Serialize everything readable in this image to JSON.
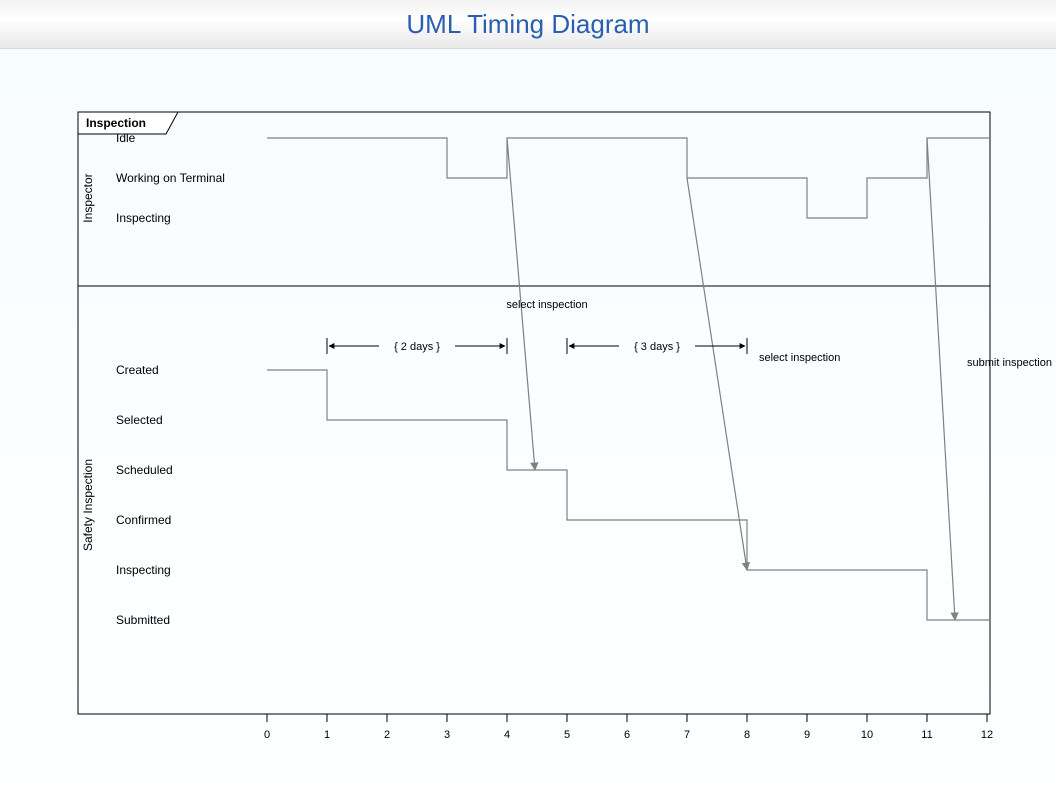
{
  "page": {
    "title": "UML Timing Diagram",
    "title_color": "#2a5fb0",
    "title_fontsize": 26,
    "background": "#f8fcff"
  },
  "diagram": {
    "type": "uml-timing",
    "frame_label": "Inspection",
    "frame_stroke": "#000000",
    "frame_fill": "#ffffff",
    "line_color": "#808080",
    "arrow_color": "#808080",
    "text_color": "#000000",
    "state_fontsize": 12,
    "small_fontsize": 11,
    "axis_fontsize": 11,
    "xaxis": {
      "min": 0,
      "max": 12,
      "step": 1
    },
    "lifelines": [
      {
        "name": "Inspector",
        "states": [
          "Idle",
          "Working on Terminal",
          "Inspecting"
        ],
        "timeline": [
          {
            "t": 0,
            "state": "Idle"
          },
          {
            "t": 3,
            "state": "Working on Terminal"
          },
          {
            "t": 4,
            "state": "Idle"
          },
          {
            "t": 7,
            "state": "Working on Terminal"
          },
          {
            "t": 9,
            "state": "Inspecting"
          },
          {
            "t": 10,
            "state": "Working on Terminal"
          },
          {
            "t": 11,
            "state": "Idle"
          },
          {
            "t": 12,
            "state": "Idle"
          }
        ]
      },
      {
        "name": "Safety Inspection",
        "states": [
          "Created",
          "Selected",
          "Scheduled",
          "Confirmed",
          "Inspecting",
          "Submitted"
        ],
        "timeline": [
          {
            "t": 0,
            "state": "Created"
          },
          {
            "t": 1,
            "state": "Selected"
          },
          {
            "t": 4,
            "state": "Scheduled"
          },
          {
            "t": 5,
            "state": "Confirmed"
          },
          {
            "t": 8,
            "state": "Inspecting"
          },
          {
            "t": 11,
            "state": "Submitted"
          },
          {
            "t": 12,
            "state": "Submitted"
          }
        ]
      }
    ],
    "messages": [
      {
        "label": "select inspection",
        "from_lane": 0,
        "from_t": 4,
        "to_lane": 1,
        "to_t": 4,
        "to_state": "Scheduled",
        "label_side": "top"
      },
      {
        "label": "select inspection",
        "from_lane": 0,
        "from_t": 7,
        "to_lane": 1,
        "to_t": 8,
        "to_state": "Inspecting",
        "label_side": "right"
      },
      {
        "label": "submit inspection",
        "from_lane": 0,
        "from_t": 11,
        "to_lane": 1,
        "to_t": 11,
        "to_state": "Submitted",
        "label_side": "right"
      }
    ],
    "constraints": [
      {
        "label": "{ 2 days }",
        "lane": 1,
        "t_from": 1,
        "t_to": 4
      },
      {
        "label": "{ 3 days }",
        "lane": 1,
        "t_from": 5,
        "t_to": 8
      }
    ]
  }
}
